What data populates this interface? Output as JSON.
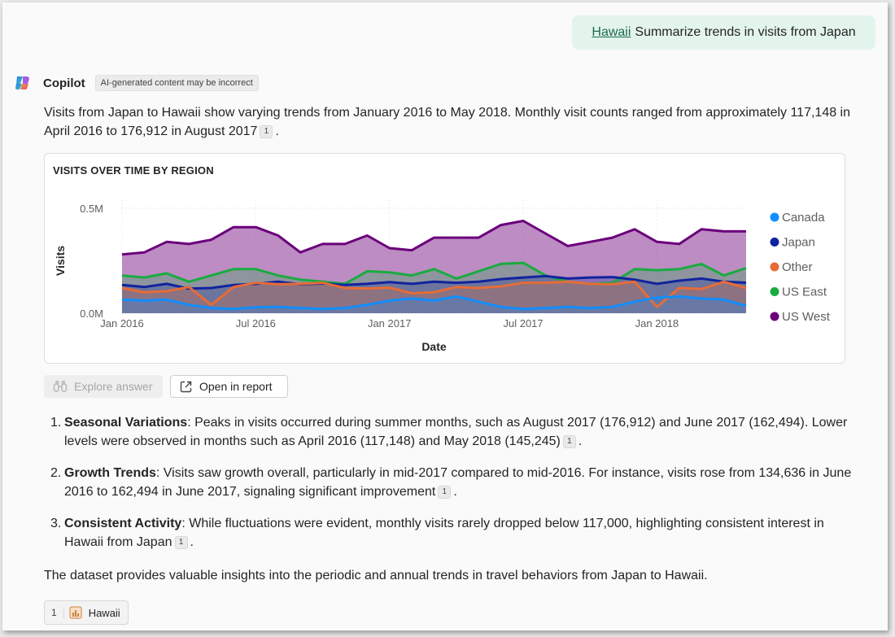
{
  "user_message": {
    "link_text": "Hawaii",
    "text": "Summarize trends in visits from Japan"
  },
  "copilot": {
    "name": "Copilot",
    "badge": "AI-generated content may be incorrect"
  },
  "intro": {
    "text": "Visits from Japan to Hawaii show varying trends from January 2016 to May 2018. Monthly visit counts ranged from approximately 117,148 in April 2016 to 176,912 in August 2017",
    "citation": "1",
    "end": "."
  },
  "chart_data": {
    "type": "area",
    "title": "VISITS OVER TIME BY REGION",
    "xlabel": "Date",
    "ylabel": "Visits",
    "yticks": [
      "0.0M",
      "0.5M"
    ],
    "ylim": [
      0,
      500000
    ],
    "xticks": [
      {
        "label": "Jan 2016",
        "index": 0
      },
      {
        "label": "Jul 2016",
        "index": 6
      },
      {
        "label": "Jan 2017",
        "index": 12
      },
      {
        "label": "Jul 2017",
        "index": 18
      },
      {
        "label": "Jan 2018",
        "index": 24
      }
    ],
    "x": [
      "2016-01",
      "2016-02",
      "2016-03",
      "2016-04",
      "2016-05",
      "2016-06",
      "2016-07",
      "2016-08",
      "2016-09",
      "2016-10",
      "2016-11",
      "2016-12",
      "2017-01",
      "2017-02",
      "2017-03",
      "2017-04",
      "2017-05",
      "2017-06",
      "2017-07",
      "2017-08",
      "2017-09",
      "2017-10",
      "2017-11",
      "2017-12",
      "2018-01",
      "2018-02",
      "2018-03",
      "2018-04",
      "2018-05"
    ],
    "legend_position": "right",
    "series": [
      {
        "name": "Canada",
        "color": "#118dff",
        "values": [
          65000,
          60000,
          65000,
          40000,
          25000,
          20000,
          28000,
          30000,
          25000,
          20000,
          25000,
          40000,
          60000,
          70000,
          60000,
          80000,
          55000,
          30000,
          20000,
          25000,
          30000,
          25000,
          30000,
          55000,
          75000,
          80000,
          70000,
          65000,
          35000
        ]
      },
      {
        "name": "Japan",
        "color": "#12239e",
        "values": [
          135000,
          125000,
          140000,
          117148,
          120000,
          134636,
          140000,
          150000,
          138000,
          142000,
          135000,
          140000,
          148000,
          140000,
          150000,
          145000,
          150000,
          162494,
          170000,
          176912,
          165000,
          170000,
          172000,
          160000,
          140000,
          155000,
          165000,
          150000,
          145245
        ]
      },
      {
        "name": "Other",
        "color": "#e66c37",
        "values": [
          120000,
          100000,
          105000,
          125000,
          40000,
          125000,
          145000,
          138000,
          140000,
          145000,
          120000,
          118000,
          122000,
          95000,
          100000,
          125000,
          120000,
          128000,
          145000,
          145000,
          150000,
          140000,
          138000,
          150000,
          30000,
          120000,
          115000,
          150000,
          120000
        ]
      },
      {
        "name": "US East",
        "color": "#1aab40",
        "values": [
          180000,
          170000,
          190000,
          150000,
          180000,
          210000,
          210000,
          180000,
          160000,
          150000,
          140000,
          200000,
          195000,
          180000,
          210000,
          165000,
          200000,
          235000,
          240000,
          180000,
          150000,
          140000,
          145000,
          210000,
          205000,
          210000,
          235000,
          180000,
          215000
        ]
      },
      {
        "name": "US West",
        "color": "#6b007b",
        "values": [
          280000,
          290000,
          340000,
          330000,
          350000,
          410000,
          410000,
          370000,
          290000,
          330000,
          330000,
          370000,
          310000,
          300000,
          360000,
          360000,
          360000,
          420000,
          440000,
          380000,
          320000,
          340000,
          360000,
          400000,
          340000,
          330000,
          400000,
          390000,
          390000
        ]
      }
    ]
  },
  "buttons": {
    "explore": "Explore answer",
    "open": "Open in report"
  },
  "list": [
    {
      "num": "1.",
      "bold": "Seasonal Variations",
      "text": ": Peaks in visits occurred during summer months, such as August 2017 (176,912) and June 2017 (162,494). Lower levels were observed in months such as April 2016 (117,148) and May 2018 (145,245)",
      "citation": "1",
      "end": "."
    },
    {
      "num": "2.",
      "bold": "Growth Trends",
      "text": ": Visits saw growth overall, particularly in mid-2017 compared to mid-2016. For instance, visits rose from 134,636 in June 2016 to 162,494 in June 2017, signaling significant improvement",
      "citation": "1",
      "end": "."
    },
    {
      "num": "3.",
      "bold": "Consistent Activity",
      "text": ": While fluctuations were evident, monthly visits rarely dropped below 117,000, highlighting consistent interest in Hawaii from Japan",
      "citation": "1",
      "end": "."
    }
  ],
  "conclusion": "The dataset provides valuable insights into the periodic and annual trends in travel behaviors from Japan to Hawaii.",
  "source": {
    "number": "1",
    "label": "Hawaii"
  }
}
